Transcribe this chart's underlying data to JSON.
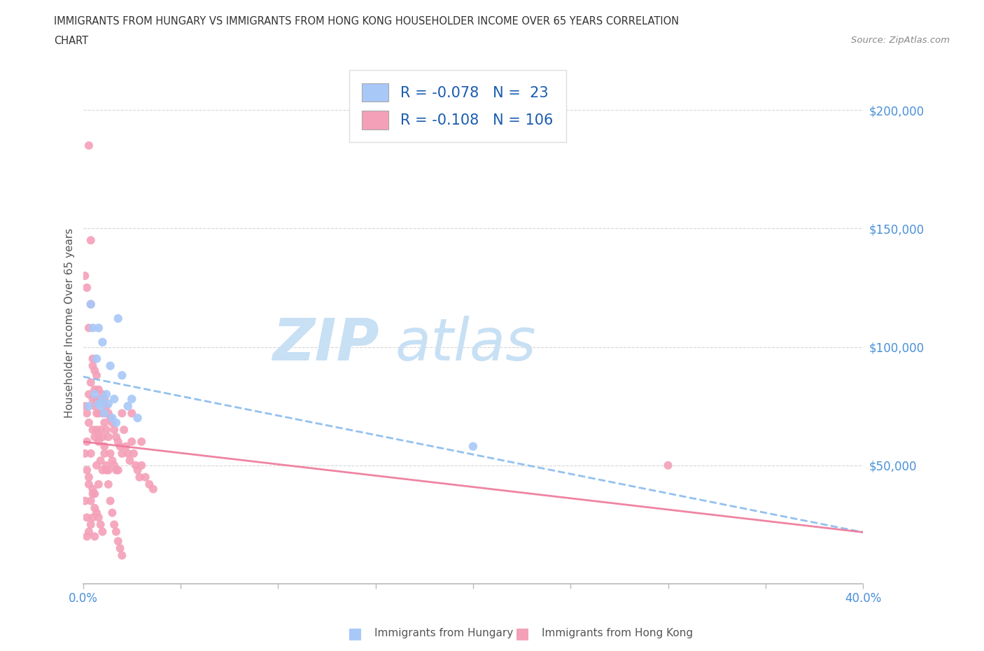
{
  "title_line1": "IMMIGRANTS FROM HUNGARY VS IMMIGRANTS FROM HONG KONG HOUSEHOLDER INCOME OVER 65 YEARS CORRELATION",
  "title_line2": "CHART",
  "source": "Source: ZipAtlas.com",
  "ylabel": "Householder Income Over 65 years",
  "xlim": [
    0.0,
    0.4
  ],
  "ylim": [
    0,
    220000
  ],
  "hungary_color": "#a8c8f8",
  "hong_kong_color": "#f4a0b8",
  "hungary_R": -0.078,
  "hungary_N": 23,
  "hong_kong_R": -0.108,
  "hong_kong_N": 106,
  "trend_hungary_color": "#88bbee",
  "trend_hong_kong_color": "#ee7799",
  "grid_color": "#cccccc",
  "watermark_zip_color": "#c8e0f4",
  "watermark_atlas_color": "#c8e0f4",
  "tick_color": "#4a90d9",
  "legend_text_color": "#1a5cb0",
  "hungary_x": [
    0.003,
    0.004,
    0.005,
    0.006,
    0.007,
    0.008,
    0.008,
    0.009,
    0.01,
    0.01,
    0.011,
    0.012,
    0.013,
    0.014,
    0.015,
    0.016,
    0.017,
    0.018,
    0.02,
    0.023,
    0.025,
    0.028,
    0.2
  ],
  "hungary_y": [
    75000,
    118000,
    108000,
    80000,
    95000,
    76000,
    108000,
    75000,
    78000,
    102000,
    72000,
    80000,
    76000,
    92000,
    70000,
    78000,
    68000,
    112000,
    88000,
    75000,
    78000,
    70000,
    58000
  ],
  "hong_kong_x": [
    0.001,
    0.001,
    0.002,
    0.002,
    0.002,
    0.003,
    0.003,
    0.003,
    0.003,
    0.004,
    0.004,
    0.004,
    0.005,
    0.005,
    0.005,
    0.005,
    0.006,
    0.006,
    0.006,
    0.006,
    0.007,
    0.007,
    0.007,
    0.007,
    0.008,
    0.008,
    0.008,
    0.008,
    0.009,
    0.009,
    0.009,
    0.01,
    0.01,
    0.01,
    0.01,
    0.011,
    0.011,
    0.011,
    0.012,
    0.012,
    0.012,
    0.013,
    0.013,
    0.013,
    0.014,
    0.014,
    0.015,
    0.015,
    0.016,
    0.016,
    0.017,
    0.017,
    0.018,
    0.018,
    0.019,
    0.02,
    0.02,
    0.021,
    0.022,
    0.023,
    0.024,
    0.025,
    0.026,
    0.027,
    0.028,
    0.029,
    0.03,
    0.032,
    0.034,
    0.036,
    0.001,
    0.002,
    0.003,
    0.004,
    0.005,
    0.006,
    0.007,
    0.008,
    0.009,
    0.01,
    0.011,
    0.012,
    0.013,
    0.014,
    0.015,
    0.016,
    0.017,
    0.018,
    0.019,
    0.02,
    0.002,
    0.003,
    0.004,
    0.005,
    0.006,
    0.3,
    0.003,
    0.004,
    0.005,
    0.006,
    0.007,
    0.008,
    0.001,
    0.002,
    0.025,
    0.03
  ],
  "hong_kong_y": [
    75000,
    35000,
    72000,
    60000,
    28000,
    185000,
    80000,
    68000,
    45000,
    145000,
    85000,
    55000,
    95000,
    78000,
    65000,
    40000,
    90000,
    75000,
    62000,
    38000,
    88000,
    78000,
    65000,
    50000,
    82000,
    72000,
    60000,
    42000,
    78000,
    65000,
    52000,
    80000,
    72000,
    62000,
    48000,
    78000,
    68000,
    55000,
    75000,
    65000,
    50000,
    72000,
    62000,
    48000,
    70000,
    55000,
    68000,
    52000,
    65000,
    50000,
    62000,
    48000,
    60000,
    48000,
    58000,
    72000,
    55000,
    65000,
    58000,
    55000,
    52000,
    60000,
    55000,
    50000,
    48000,
    45000,
    50000,
    45000,
    42000,
    40000,
    55000,
    48000,
    42000,
    35000,
    38000,
    32000,
    30000,
    28000,
    25000,
    22000,
    58000,
    48000,
    42000,
    35000,
    30000,
    25000,
    22000,
    18000,
    15000,
    12000,
    20000,
    22000,
    25000,
    28000,
    20000,
    50000,
    108000,
    118000,
    92000,
    82000,
    72000,
    62000,
    130000,
    125000,
    72000,
    60000
  ]
}
